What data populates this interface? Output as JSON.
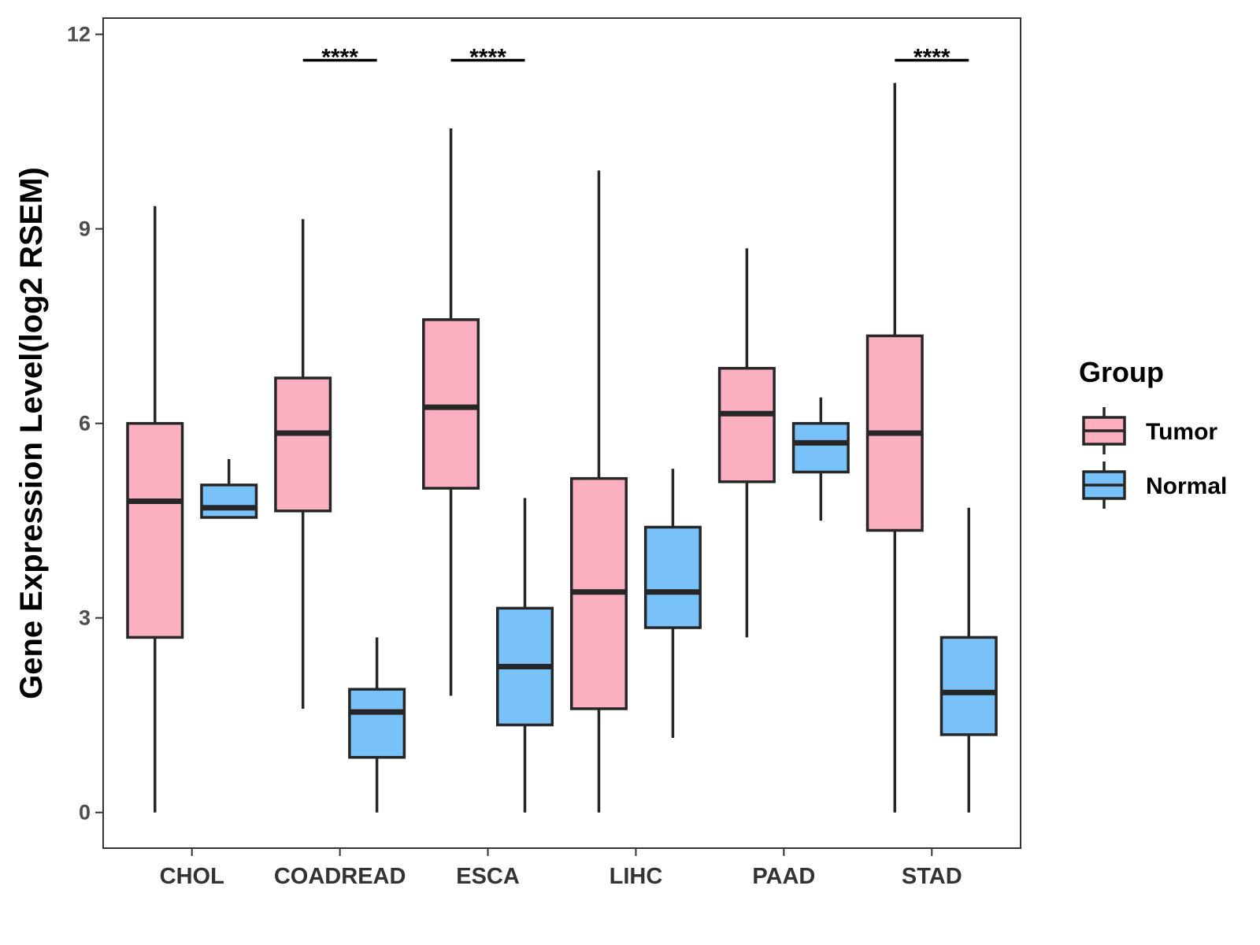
{
  "chart_data": {
    "type": "boxplot",
    "title": "",
    "xlabel": "",
    "ylabel": "Gene Expression Level(log2 RSEM)",
    "ylim": [
      -0.55,
      12.25
    ],
    "yticks": [
      0,
      3,
      6,
      9,
      12
    ],
    "ytick_labels": [
      "0",
      "3",
      "6",
      "9",
      "12"
    ],
    "grid": false,
    "categories": [
      "CHOL",
      "COADREAD",
      "ESCA",
      "LIHC",
      "PAAD",
      "STAD"
    ],
    "legend": {
      "title": "Group",
      "position": "right",
      "entries": [
        "Tumor",
        "Normal"
      ]
    },
    "series": [
      {
        "name": "Tumor",
        "color": "#fbb0c1",
        "boxes": [
          {
            "whisker_low": 0.0,
            "q1": 2.7,
            "median": 4.8,
            "q3": 6.0,
            "whisker_high": 9.35
          },
          {
            "whisker_low": 1.6,
            "q1": 4.65,
            "median": 5.85,
            "q3": 6.7,
            "whisker_high": 9.15
          },
          {
            "whisker_low": 1.8,
            "q1": 5.0,
            "median": 6.25,
            "q3": 7.6,
            "whisker_high": 10.55
          },
          {
            "whisker_low": 0.0,
            "q1": 1.6,
            "median": 3.4,
            "q3": 5.15,
            "whisker_high": 9.9
          },
          {
            "whisker_low": 2.7,
            "q1": 5.1,
            "median": 6.15,
            "q3": 6.85,
            "whisker_high": 8.7
          },
          {
            "whisker_low": 0.0,
            "q1": 4.35,
            "median": 5.85,
            "q3": 7.35,
            "whisker_high": 11.25
          }
        ]
      },
      {
        "name": "Normal",
        "color": "#78c1f9",
        "boxes": [
          {
            "whisker_low": 4.55,
            "q1": 4.55,
            "median": 4.7,
            "q3": 5.05,
            "whisker_high": 5.45
          },
          {
            "whisker_low": 0.0,
            "q1": 0.85,
            "median": 1.55,
            "q3": 1.9,
            "whisker_high": 2.7
          },
          {
            "whisker_low": 0.0,
            "q1": 1.35,
            "median": 2.25,
            "q3": 3.15,
            "whisker_high": 4.85
          },
          {
            "whisker_low": 1.15,
            "q1": 2.85,
            "median": 3.4,
            "q3": 4.4,
            "whisker_high": 5.3
          },
          {
            "whisker_low": 4.5,
            "q1": 5.25,
            "median": 5.7,
            "q3": 6.0,
            "whisker_high": 6.4
          },
          {
            "whisker_low": 0.0,
            "q1": 1.2,
            "median": 1.85,
            "q3": 2.7,
            "whisker_high": 4.7
          }
        ]
      }
    ],
    "annotations": [
      {
        "category": "COADREAD",
        "text": "****",
        "y": 11.6
      },
      {
        "category": "ESCA",
        "text": "****",
        "y": 11.6
      },
      {
        "category": "STAD",
        "text": "****",
        "y": 11.6
      }
    ]
  }
}
